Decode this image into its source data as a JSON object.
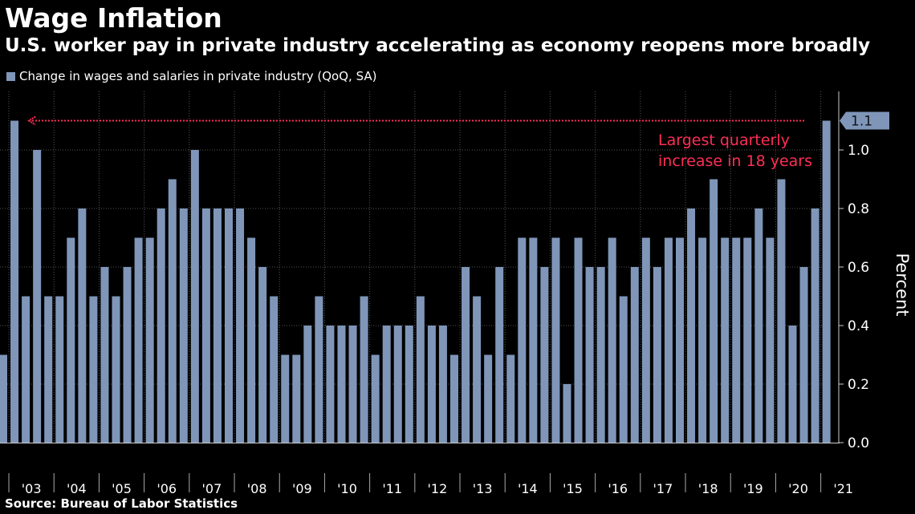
{
  "header": {
    "title": "Wage Inflation",
    "subtitle": "U.S. worker pay in private industry accelerating as economy reopens more broadly"
  },
  "legend": {
    "label": "Change in wages and salaries in private industry (QoQ, SA)",
    "color": "#7f96b9"
  },
  "source": "Source: Bureau of Labor Statistics",
  "annotation": {
    "text_line1": "Largest quarterly",
    "text_line2": "increase in 18 years",
    "color": "#ff2d55",
    "reference_value": 1.1
  },
  "last_value_label": "1.1",
  "chart_data": {
    "type": "bar",
    "title": "Wage Inflation",
    "subtitle": "U.S. worker pay in private industry accelerating as economy reopens more broadly",
    "ylabel": "Percent",
    "xlabel": "",
    "ylim": [
      0,
      1.2
    ],
    "yticks": [
      0.0,
      0.2,
      0.4,
      0.6,
      0.8,
      1.0
    ],
    "ytick_labels": [
      "0.0",
      "0.2",
      "0.4",
      "0.6",
      "0.8",
      "1.0"
    ],
    "legend_position": "top-left",
    "grid": true,
    "bar_color": "#7f96b9",
    "x_start": "2002 Q4",
    "x_end": "2021 Q1",
    "year_labels": [
      "'03",
      "'04",
      "'05",
      "'06",
      "'07",
      "'08",
      "'09",
      "'10",
      "'11",
      "'12",
      "'13",
      "'14",
      "'15",
      "'16",
      "'17",
      "'18",
      "'19",
      "'20",
      "'21"
    ],
    "series": [
      {
        "name": "Change in wages and salaries in private industry (QoQ, SA)",
        "values": [
          0.3,
          1.1,
          0.5,
          1.0,
          0.5,
          0.5,
          0.7,
          0.8,
          0.5,
          0.6,
          0.5,
          0.6,
          0.7,
          0.7,
          0.8,
          0.9,
          0.8,
          1.0,
          0.8,
          0.8,
          0.8,
          0.8,
          0.7,
          0.6,
          0.5,
          0.3,
          0.3,
          0.4,
          0.5,
          0.4,
          0.4,
          0.4,
          0.5,
          0.3,
          0.4,
          0.4,
          0.4,
          0.5,
          0.4,
          0.4,
          0.3,
          0.6,
          0.5,
          0.3,
          0.6,
          0.3,
          0.7,
          0.7,
          0.6,
          0.7,
          0.2,
          0.7,
          0.6,
          0.6,
          0.7,
          0.5,
          0.6,
          0.7,
          0.6,
          0.7,
          0.7,
          0.8,
          0.7,
          0.9,
          0.7,
          0.7,
          0.7,
          0.8,
          0.7,
          0.9,
          0.4,
          0.6,
          0.8,
          1.1
        ]
      }
    ]
  }
}
